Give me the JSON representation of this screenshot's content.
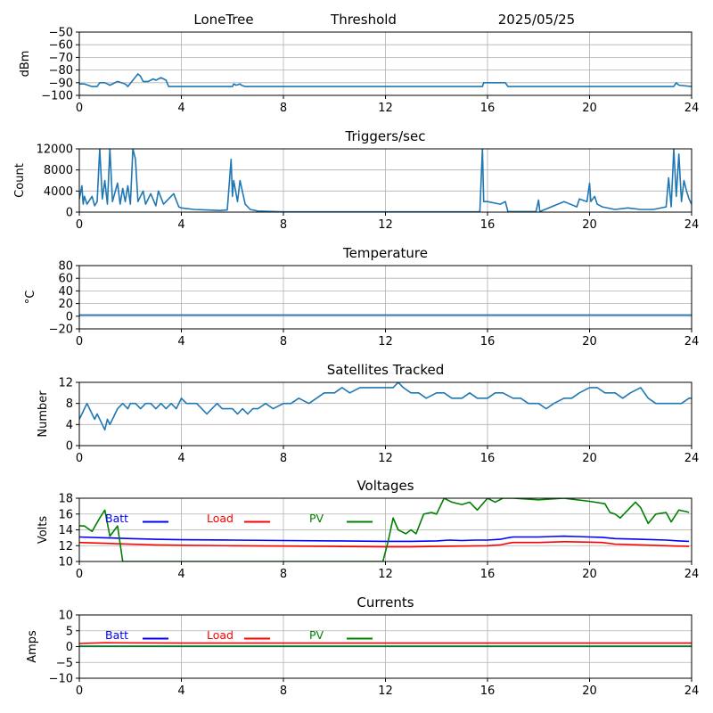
{
  "header": {
    "site": "LoneTree",
    "mode": "Threshold",
    "date": "2025/05/25"
  },
  "colors": {
    "series": "#1f77b4",
    "grid": "#b0b0b0",
    "batt": "#0000ff",
    "load": "#ff0000",
    "pv": "#008000"
  },
  "chart_data": [
    {
      "id": "signal",
      "type": "line",
      "title": "",
      "ylabel": "dBm",
      "xlim": [
        0,
        24
      ],
      "ylim": [
        -100,
        -50
      ],
      "xticks": [
        0,
        4,
        8,
        12,
        16,
        20,
        24
      ],
      "yticks": [
        -100,
        -90,
        -80,
        -70,
        -60,
        -50
      ],
      "ytick_labels": [
        "−100",
        "−90",
        "−80",
        "−70",
        "−60",
        "−50"
      ],
      "grid": true,
      "series": [
        {
          "x": [
            0,
            0.2,
            0.5,
            0.7,
            0.8,
            1.0,
            1.1,
            1.2,
            1.5,
            1.8,
            1.9,
            2.1,
            2.3,
            2.4,
            2.5,
            2.7,
            2.9,
            3.0,
            3.2,
            3.4,
            3.5,
            6.0,
            6.05,
            6.15,
            6.3,
            6.35,
            6.5,
            15.8,
            15.85,
            16.2,
            16.7,
            16.8,
            23.3,
            23.4,
            23.5,
            24
          ],
          "y": [
            -91,
            -91,
            -93,
            -93,
            -90,
            -90,
            -91,
            -92,
            -89,
            -91,
            -93,
            -88,
            -83,
            -85,
            -89,
            -89,
            -87,
            -88,
            -86,
            -88,
            -93,
            -93,
            -91,
            -92,
            -91,
            -92,
            -93,
            -93,
            -90,
            -90,
            -90,
            -93,
            -93,
            -90,
            -92,
            -93
          ]
        }
      ]
    },
    {
      "id": "triggers",
      "type": "line",
      "title": "Triggers/sec",
      "ylabel": "Count",
      "xlim": [
        0,
        24
      ],
      "ylim": [
        0,
        12000
      ],
      "xticks": [
        0,
        4,
        8,
        12,
        16,
        20,
        24
      ],
      "yticks": [
        0,
        4000,
        8000,
        12000
      ],
      "ytick_labels": [
        "0",
        "4000",
        "8000",
        "12000"
      ],
      "grid": true,
      "series": [
        {
          "x": [
            0,
            0.1,
            0.15,
            0.2,
            0.3,
            0.5,
            0.6,
            0.7,
            0.8,
            0.9,
            1.0,
            1.1,
            1.2,
            1.3,
            1.5,
            1.6,
            1.7,
            1.8,
            1.9,
            2.0,
            2.1,
            2.2,
            2.3,
            2.5,
            2.6,
            2.8,
            3.0,
            3.1,
            3.3,
            3.5,
            3.7,
            3.9,
            4.0,
            4.5,
            5.0,
            5.5,
            5.8,
            5.95,
            6.0,
            6.05,
            6.2,
            6.3,
            6.5,
            6.7,
            7.0,
            8.0,
            12.0,
            15.7,
            15.8,
            15.85,
            16.0,
            16.5,
            16.7,
            16.8,
            17.0,
            17.9,
            18.0,
            18.05,
            19.0,
            19.5,
            19.6,
            19.9,
            20.0,
            20.05,
            20.2,
            20.3,
            20.5,
            21.0,
            21.5,
            22.0,
            22.5,
            23.0,
            23.1,
            23.2,
            23.3,
            23.4,
            23.5,
            23.6,
            23.7,
            23.8,
            23.9,
            24
          ],
          "y": [
            2500,
            5000,
            1500,
            3000,
            1500,
            3000,
            1200,
            2000,
            12000,
            2500,
            6000,
            1500,
            12000,
            2000,
            5500,
            1500,
            4500,
            2000,
            5000,
            1500,
            12000,
            10000,
            2000,
            4000,
            1500,
            3500,
            1200,
            4000,
            1500,
            2500,
            3500,
            1000,
            800,
            500,
            400,
            300,
            400,
            10000,
            3000,
            6000,
            2000,
            6000,
            1500,
            500,
            200,
            50,
            50,
            50,
            12000,
            2000,
            2000,
            1500,
            2000,
            100,
            100,
            100,
            2300,
            100,
            2000,
            1000,
            2500,
            2000,
            5500,
            2000,
            3000,
            1500,
            1000,
            500,
            800,
            500,
            500,
            1000,
            6500,
            1000,
            12000,
            3000,
            11000,
            2000,
            6000,
            4000,
            2500,
            1500
          ]
        }
      ]
    },
    {
      "id": "temperature",
      "type": "line",
      "title": "Temperature",
      "ylabel": "°C",
      "xlim": [
        0,
        24
      ],
      "ylim": [
        -20,
        80
      ],
      "xticks": [
        0,
        4,
        8,
        12,
        16,
        20,
        24
      ],
      "yticks": [
        -20,
        0,
        20,
        40,
        60,
        80
      ],
      "ytick_labels": [
        "−20",
        "0",
        "20",
        "40",
        "60",
        "80"
      ],
      "grid": true,
      "series": [
        {
          "x": [
            0,
            24
          ],
          "y": [
            2,
            2
          ]
        }
      ]
    },
    {
      "id": "satellites",
      "type": "line",
      "title": "Satellites Tracked",
      "ylabel": "Number",
      "xlim": [
        0,
        24
      ],
      "ylim": [
        0,
        12
      ],
      "xticks": [
        0,
        4,
        8,
        12,
        16,
        20,
        24
      ],
      "yticks": [
        0,
        4,
        8,
        12
      ],
      "ytick_labels": [
        "0",
        "4",
        "8",
        "12"
      ],
      "grid": true,
      "series": [
        {
          "x": [
            0,
            0.1,
            0.2,
            0.3,
            0.4,
            0.5,
            0.6,
            0.7,
            0.8,
            0.9,
            1.0,
            1.1,
            1.2,
            1.3,
            1.5,
            1.7,
            1.9,
            2.0,
            2.2,
            2.4,
            2.6,
            2.8,
            3.0,
            3.2,
            3.4,
            3.6,
            3.8,
            4.0,
            4.2,
            4.4,
            4.6,
            4.8,
            5.0,
            5.2,
            5.4,
            5.6,
            5.8,
            6.0,
            6.2,
            6.4,
            6.6,
            6.8,
            7.0,
            7.3,
            7.6,
            8.0,
            8.3,
            8.6,
            9.0,
            9.3,
            9.6,
            10.0,
            10.3,
            10.6,
            11.0,
            11.3,
            11.6,
            12.0,
            12.3,
            12.5,
            12.7,
            13.0,
            13.3,
            13.6,
            14.0,
            14.3,
            14.6,
            15.0,
            15.3,
            15.6,
            16.0,
            16.3,
            16.6,
            17.0,
            17.3,
            17.6,
            18.0,
            18.3,
            18.6,
            19.0,
            19.3,
            19.6,
            20.0,
            20.3,
            20.6,
            21.0,
            21.3,
            21.6,
            22.0,
            22.3,
            22.6,
            23.0,
            23.3,
            23.6,
            23.9,
            24
          ],
          "y": [
            5,
            6,
            7,
            8,
            7,
            6,
            5,
            6,
            5,
            4,
            3,
            5,
            4,
            5,
            7,
            8,
            7,
            8,
            8,
            7,
            8,
            8,
            7,
            8,
            7,
            8,
            7,
            9,
            8,
            8,
            8,
            7,
            6,
            7,
            8,
            7,
            7,
            7,
            6,
            7,
            6,
            7,
            7,
            8,
            7,
            8,
            8,
            9,
            8,
            9,
            10,
            10,
            11,
            10,
            11,
            11,
            11,
            11,
            11,
            12,
            11,
            10,
            10,
            9,
            10,
            10,
            9,
            9,
            10,
            9,
            9,
            10,
            10,
            9,
            9,
            8,
            8,
            7,
            8,
            9,
            9,
            10,
            11,
            11,
            10,
            10,
            9,
            10,
            11,
            9,
            8,
            8,
            8,
            8,
            9,
            9
          ]
        }
      ]
    },
    {
      "id": "voltages",
      "type": "line",
      "title": "Voltages",
      "ylabel": "Volts",
      "xlim": [
        0,
        24
      ],
      "ylim": [
        10,
        18
      ],
      "xticks": [
        0,
        4,
        8,
        12,
        16,
        20,
        24
      ],
      "yticks": [
        10,
        12,
        14,
        16,
        18
      ],
      "ytick_labels": [
        "10",
        "12",
        "14",
        "16",
        "18"
      ],
      "grid": true,
      "legend": [
        {
          "label": "Batt",
          "key": "batt"
        },
        {
          "label": "Load",
          "key": "load"
        },
        {
          "label": "PV",
          "key": "pv"
        }
      ],
      "series": [
        {
          "name": "Batt",
          "color_key": "batt",
          "x": [
            0,
            1,
            2,
            3,
            4,
            6,
            8,
            10,
            12,
            13,
            14,
            14.5,
            15,
            15.5,
            16,
            16.5,
            16.8,
            17,
            18,
            18.5,
            19,
            19.5,
            20,
            20.5,
            21,
            22,
            23,
            23.5,
            23.9
          ],
          "y": [
            13.1,
            13.0,
            12.9,
            12.8,
            12.75,
            12.7,
            12.65,
            12.6,
            12.55,
            12.55,
            12.6,
            12.7,
            12.65,
            12.7,
            12.7,
            12.8,
            13.0,
            13.1,
            13.1,
            13.15,
            13.2,
            13.15,
            13.1,
            13.05,
            12.9,
            12.8,
            12.7,
            12.6,
            12.55
          ]
        },
        {
          "name": "Load",
          "color_key": "load",
          "x": [
            0,
            1,
            2,
            3,
            4,
            6,
            8,
            10,
            12,
            13,
            14,
            15,
            16,
            16.5,
            16.8,
            17,
            18,
            19,
            20,
            20.5,
            21,
            22,
            23,
            23.9
          ],
          "y": [
            12.4,
            12.3,
            12.2,
            12.1,
            12.05,
            12.0,
            11.95,
            11.9,
            11.85,
            11.85,
            11.9,
            11.95,
            12.0,
            12.1,
            12.3,
            12.4,
            12.4,
            12.5,
            12.45,
            12.4,
            12.2,
            12.1,
            12.0,
            11.9
          ]
        },
        {
          "name": "PV",
          "color_key": "pv",
          "x": [
            0,
            0.2,
            0.5,
            0.8,
            1.0,
            1.2,
            1.5,
            1.7,
            11.9,
            12.1,
            12.3,
            12.5,
            12.8,
            13.0,
            13.2,
            13.5,
            13.8,
            14.0,
            14.3,
            14.6,
            15.0,
            15.3,
            15.6,
            16.0,
            16.3,
            16.6,
            17.0,
            18.0,
            19.0,
            20.0,
            20.6,
            20.8,
            21.0,
            21.2,
            21.5,
            21.8,
            22.0,
            22.3,
            22.6,
            23.0,
            23.2,
            23.5,
            23.8,
            23.9
          ],
          "y": [
            14.5,
            14.5,
            13.8,
            15.5,
            16.5,
            13.2,
            14.5,
            10,
            10,
            12.5,
            15.5,
            14.0,
            13.5,
            14.0,
            13.5,
            16.0,
            16.2,
            16.0,
            18,
            17.5,
            17.2,
            17.5,
            16.5,
            18,
            17.5,
            18,
            18,
            17.8,
            18,
            17.6,
            17.3,
            16.2,
            16.0,
            15.5,
            16.5,
            17.5,
            16.8,
            14.8,
            16.0,
            16.2,
            15.0,
            16.5,
            16.3,
            16.2
          ]
        }
      ]
    },
    {
      "id": "currents",
      "type": "line",
      "title": "Currents",
      "ylabel": "Amps",
      "xlim": [
        0,
        24
      ],
      "ylim": [
        -10,
        10
      ],
      "xticks": [
        0,
        4,
        8,
        12,
        16,
        20,
        24
      ],
      "yticks": [
        -10,
        -5,
        0,
        5,
        10
      ],
      "ytick_labels": [
        "−10",
        "−5",
        "0",
        "5",
        "10"
      ],
      "grid": true,
      "legend": [
        {
          "label": "Batt",
          "key": "batt"
        },
        {
          "label": "Load",
          "key": "load"
        },
        {
          "label": "PV",
          "key": "pv"
        }
      ],
      "series": [
        {
          "name": "Batt",
          "color_key": "batt",
          "x": [
            0,
            24
          ],
          "y": [
            0.1,
            0.1
          ]
        },
        {
          "name": "Load",
          "color_key": "load",
          "x": [
            0,
            1,
            4,
            8,
            12,
            16,
            20,
            24
          ],
          "y": [
            1.0,
            1.2,
            1.1,
            1.1,
            1.1,
            1.1,
            1.1,
            1.1
          ]
        },
        {
          "name": "PV",
          "color_key": "pv",
          "x": [
            0,
            24
          ],
          "y": [
            0.05,
            0.05
          ]
        }
      ]
    }
  ]
}
